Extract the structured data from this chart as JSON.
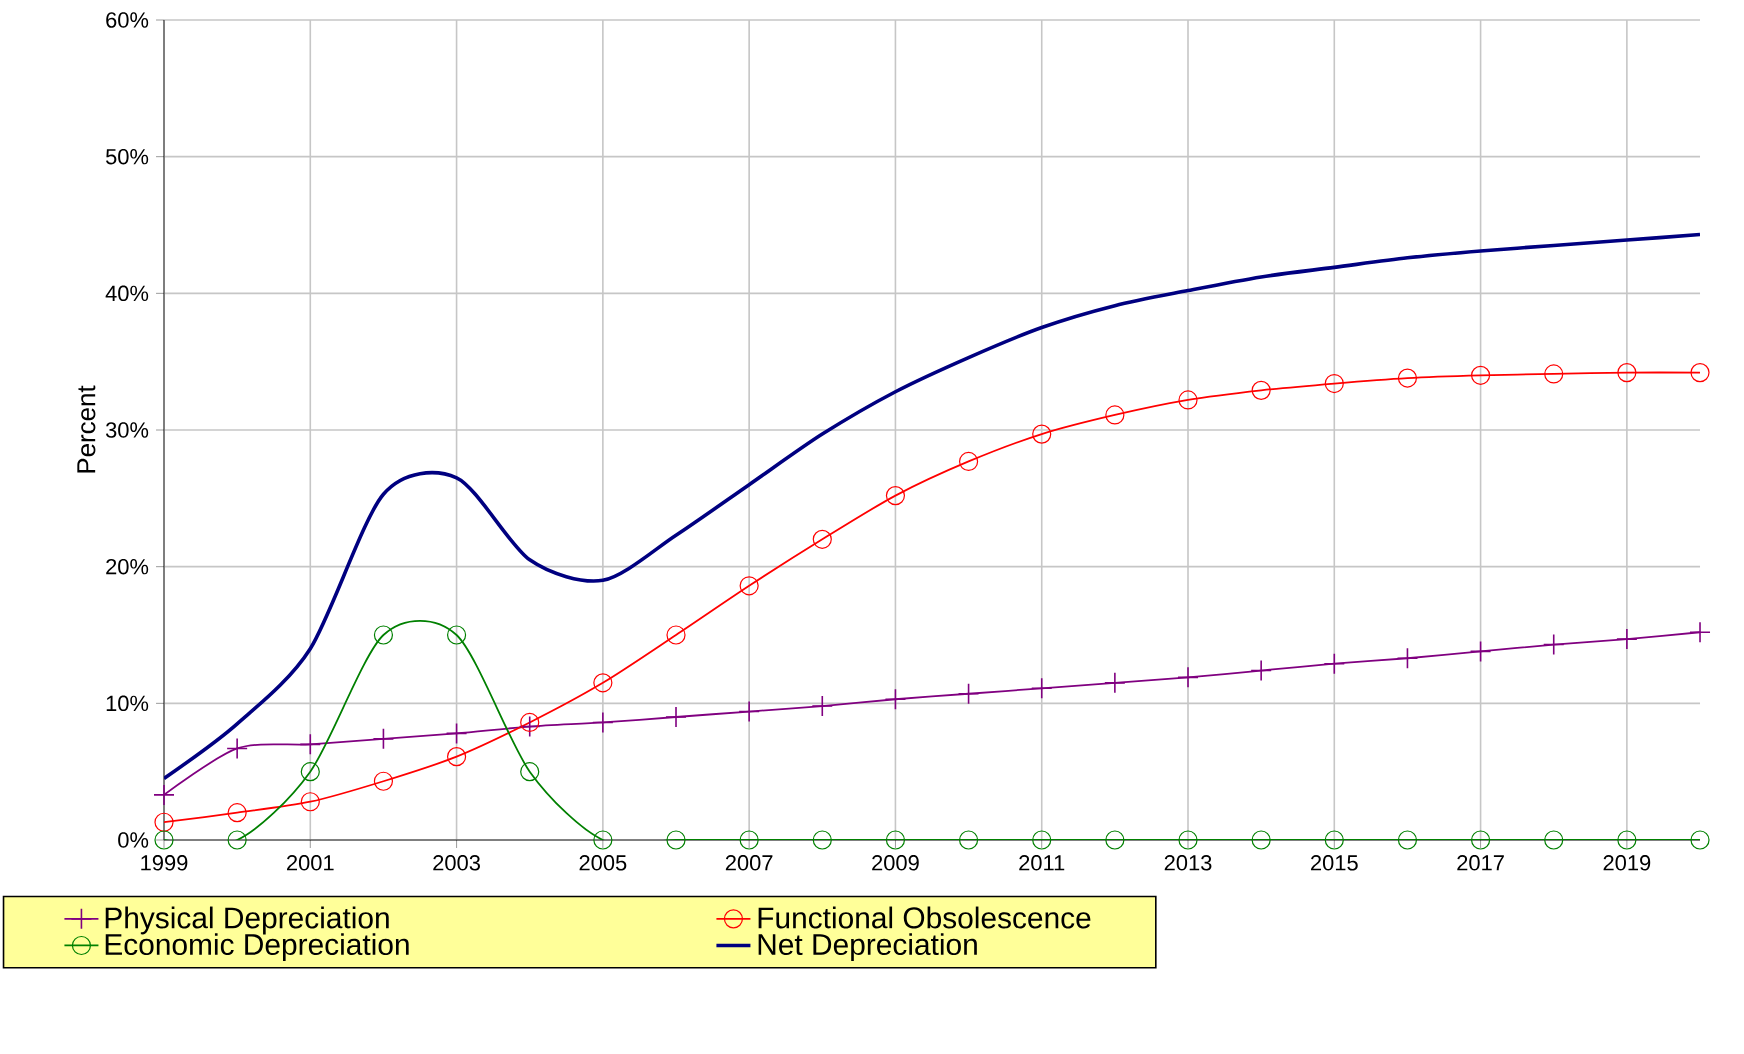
{
  "chart_data": {
    "type": "line",
    "ylabel": "Percent",
    "x": [
      1999,
      2000,
      2001,
      2002,
      2003,
      2004,
      2005,
      2006,
      2007,
      2008,
      2009,
      2010,
      2011,
      2012,
      2013,
      2014,
      2015,
      2016,
      2017,
      2018,
      2019,
      2020
    ],
    "series": [
      {
        "name": "Physical Depreciation",
        "color": "#800080",
        "marker": "cross",
        "values": [
          3.3,
          6.7,
          7.0,
          7.4,
          7.8,
          8.3,
          8.6,
          9.0,
          9.4,
          9.8,
          10.3,
          10.7,
          11.1,
          11.5,
          11.9,
          12.4,
          12.9,
          13.3,
          13.8,
          14.3,
          14.7,
          15.2
        ]
      },
      {
        "name": "Functional Obsolescence",
        "color": "#ff0000",
        "marker": "circle",
        "values": [
          1.3,
          2.0,
          2.8,
          4.3,
          6.1,
          8.6,
          11.5,
          15.0,
          18.6,
          22.0,
          25.2,
          27.7,
          29.7,
          31.1,
          32.2,
          32.9,
          33.4,
          33.8,
          34.0,
          34.1,
          34.2,
          34.2
        ]
      },
      {
        "name": "Economic Depreciation",
        "color": "#008000",
        "marker": "circle",
        "values": [
          0,
          0,
          5,
          15,
          15,
          5,
          0,
          0,
          0,
          0,
          0,
          0,
          0,
          0,
          0,
          0,
          0,
          0,
          0,
          0,
          0,
          0
        ]
      },
      {
        "name": "Net Depreciation",
        "color": "#000080",
        "marker": "none",
        "values": [
          4.5,
          8.5,
          14.0,
          25.3,
          26.5,
          20.5,
          19.0,
          22.3,
          26.0,
          29.7,
          32.8,
          35.3,
          37.5,
          39.1,
          40.2,
          41.2,
          41.9,
          42.6,
          43.1,
          43.5,
          43.9,
          44.3
        ]
      }
    ],
    "xlim": [
      1999,
      2020
    ],
    "xticks": [
      1999,
      2001,
      2003,
      2005,
      2007,
      2009,
      2011,
      2013,
      2015,
      2017,
      2019
    ],
    "ylim": [
      0,
      60
    ],
    "yticks": [
      {
        "value": 0,
        "label": "0%"
      },
      {
        "value": 10,
        "label": "10%"
      },
      {
        "value": 20,
        "label": "20%"
      },
      {
        "value": 30,
        "label": "30%"
      },
      {
        "value": 40,
        "label": "40%"
      },
      {
        "value": 50,
        "label": "50%"
      },
      {
        "value": 60,
        "label": "60%"
      }
    ],
    "grid": true,
    "legend": "bottom"
  }
}
